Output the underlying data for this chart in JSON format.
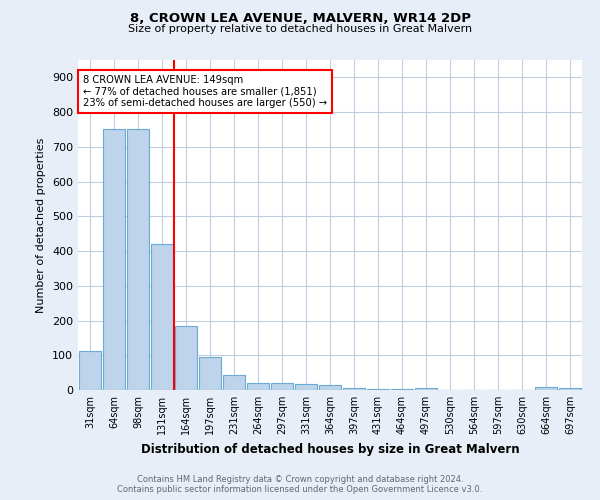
{
  "title": "8, CROWN LEA AVENUE, MALVERN, WR14 2DP",
  "subtitle": "Size of property relative to detached houses in Great Malvern",
  "xlabel": "Distribution of detached houses by size in Great Malvern",
  "ylabel": "Number of detached properties",
  "footer_line1": "Contains HM Land Registry data © Crown copyright and database right 2024.",
  "footer_line2": "Contains public sector information licensed under the Open Government Licence v3.0.",
  "bar_labels": [
    "31sqm",
    "64sqm",
    "98sqm",
    "131sqm",
    "164sqm",
    "197sqm",
    "231sqm",
    "264sqm",
    "297sqm",
    "331sqm",
    "364sqm",
    "397sqm",
    "431sqm",
    "464sqm",
    "497sqm",
    "530sqm",
    "564sqm",
    "597sqm",
    "630sqm",
    "664sqm",
    "697sqm"
  ],
  "bar_values": [
    112,
    750,
    750,
    420,
    185,
    95,
    43,
    20,
    20,
    18,
    15,
    7,
    2,
    2,
    7,
    0,
    0,
    0,
    0,
    8,
    5
  ],
  "bar_color": "#bdd4eb",
  "bar_edge_color": "#6aaad4",
  "property_line_x": 3.5,
  "annotation_text": "8 CROWN LEA AVENUE: 149sqm\n← 77% of detached houses are smaller (1,851)\n23% of semi-detached houses are larger (550) →",
  "annotation_box_color": "white",
  "annotation_box_edge_color": "red",
  "red_line_color": "red",
  "ylim": [
    0,
    950
  ],
  "yticks": [
    0,
    100,
    200,
    300,
    400,
    500,
    600,
    700,
    800,
    900
  ],
  "background_color": "#e8eef8",
  "plot_background": "white",
  "grid_color": "#c0cce0"
}
